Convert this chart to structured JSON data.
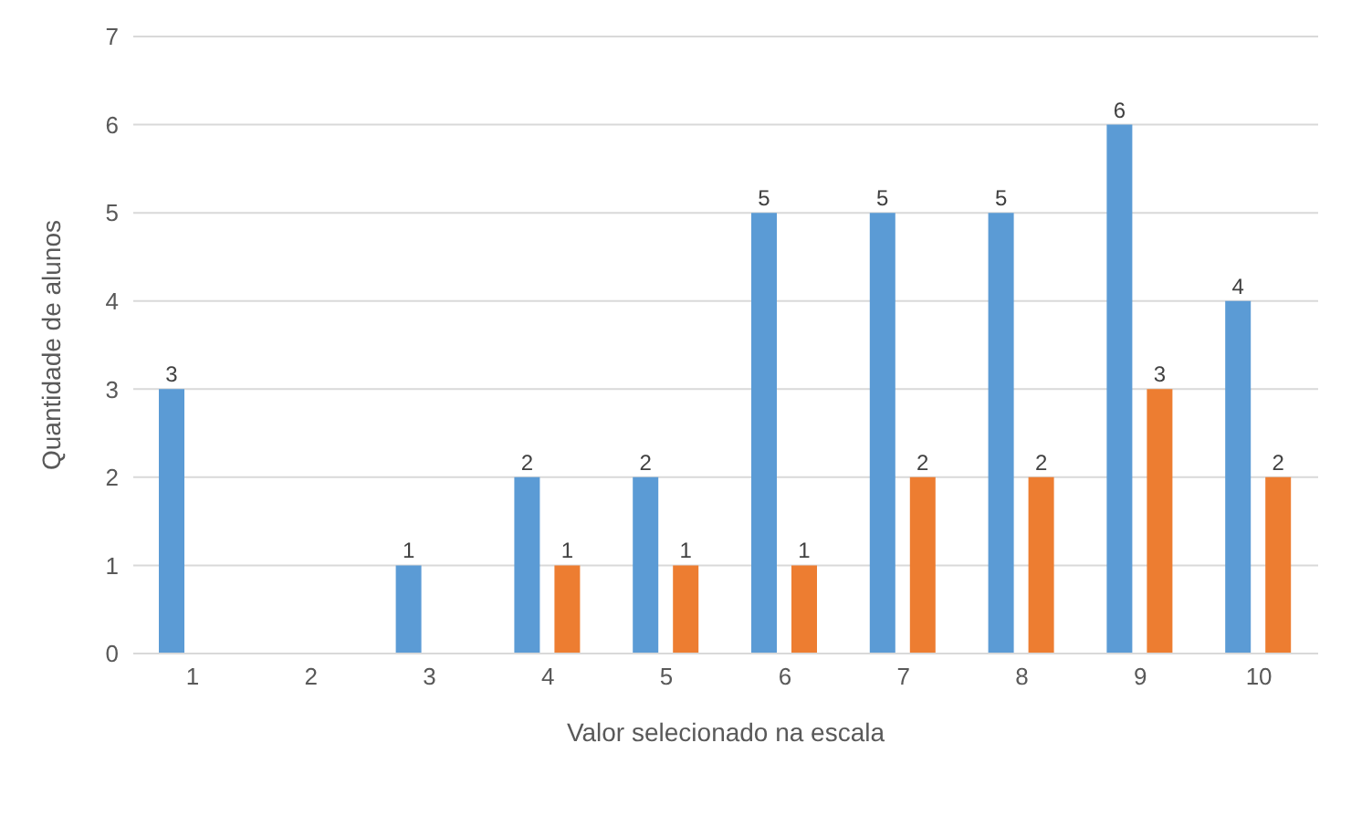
{
  "chart_data": {
    "type": "bar",
    "xlabel": "Valor selecionado na  escala",
    "ylabel": "Quantidade de  alunos",
    "categories": [
      "1",
      "2",
      "3",
      "4",
      "5",
      "6",
      "7",
      "8",
      "9",
      "10"
    ],
    "series": [
      {
        "color": "#5b9bd5",
        "values": [
          3,
          0,
          1,
          2,
          2,
          5,
          5,
          5,
          6,
          4
        ],
        "value_labels": [
          "3",
          null,
          "1",
          "2",
          "2",
          "5",
          "5",
          "5",
          "6",
          "4"
        ]
      },
      {
        "color": "#ed7d31",
        "values": [
          0,
          0,
          0,
          1,
          1,
          1,
          2,
          2,
          3,
          2
        ],
        "value_labels": [
          null,
          null,
          null,
          "1",
          "1",
          "1",
          "2",
          "2",
          "3",
          "2"
        ]
      }
    ],
    "ylim": [
      0,
      7
    ],
    "yticks": [
      0,
      1,
      2,
      3,
      4,
      5,
      6,
      7
    ],
    "grid": "y",
    "legend": false
  }
}
